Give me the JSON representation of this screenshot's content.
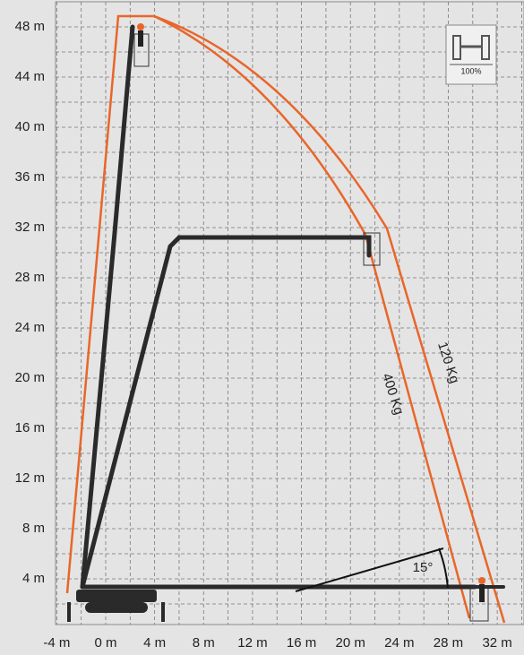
{
  "y_axis": {
    "labels": [
      "48 m",
      "44 m",
      "40 m",
      "36 m",
      "32 m",
      "28 m",
      "24 m",
      "20 m",
      "16 m",
      "12 m",
      "8 m",
      "4 m"
    ]
  },
  "x_axis": {
    "labels": [
      "-4 m",
      "0 m",
      "4 m",
      "8 m",
      "12 m",
      "16 m",
      "20 m",
      "24 m",
      "28 m",
      "32 m"
    ]
  },
  "curves": {
    "outer": "120 Kg",
    "inner": "400 Kg"
  },
  "angle": "15°",
  "stabilizer_badge": "100%"
}
